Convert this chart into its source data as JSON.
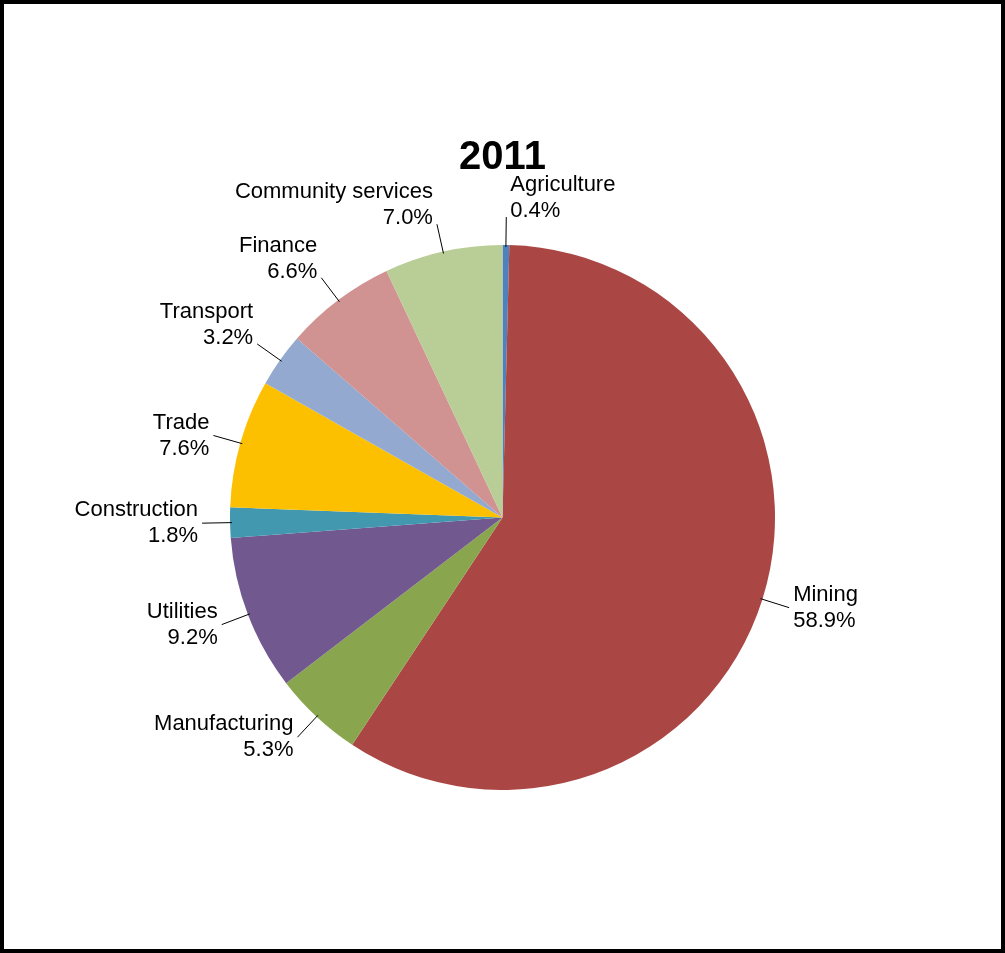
{
  "chart_data": {
    "type": "pie",
    "title": "2011",
    "categories": [
      "Agriculture",
      "Mining",
      "Manufacturing",
      "Utilities",
      "Construction",
      "Trade",
      "Transport",
      "Finance",
      "Community services"
    ],
    "values": [
      0.4,
      58.9,
      5.3,
      9.2,
      1.8,
      7.6,
      3.2,
      6.6,
      7.0
    ],
    "value_labels": [
      "0.4%",
      "58.9%",
      "5.3%",
      "9.2%",
      "1.8%",
      "7.6%",
      "3.2%",
      "6.6%",
      "7.0%"
    ],
    "colors": [
      "#4f81bd",
      "#aa4744",
      "#89a54e",
      "#71588f",
      "#4198af",
      "#fdc000",
      "#93a9cf",
      "#d19392",
      "#b9cd96"
    ],
    "legend": false
  }
}
